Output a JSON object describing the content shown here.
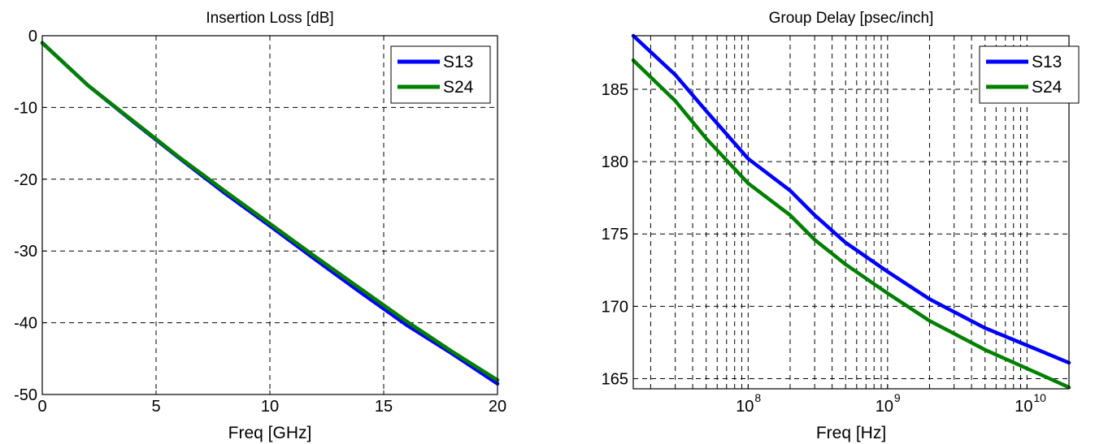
{
  "chart_data": [
    {
      "type": "line",
      "title": "Insertion Loss [dB]",
      "xlabel": "Freq [GHz]",
      "ylabel": "",
      "xscale": "linear",
      "xlim": [
        0,
        20
      ],
      "ylim": [
        -50,
        0
      ],
      "xticks": [
        0,
        5,
        10,
        15,
        20
      ],
      "xtick_labels": [
        "0",
        "5",
        "10",
        "15",
        "20"
      ],
      "yticks": [
        0,
        -10,
        -20,
        -30,
        -40,
        -50
      ],
      "ytick_labels": [
        "0",
        "-10",
        "-20",
        "-30",
        "-40",
        "-50"
      ],
      "grid": true,
      "legend_position": "top-right",
      "series": [
        {
          "name": "S13",
          "color": "#0000ff",
          "x": [
            0,
            2,
            4,
            6,
            8,
            10,
            12,
            14,
            16,
            18,
            20
          ],
          "y": [
            -1.0,
            -6.9,
            -12.0,
            -17.0,
            -21.9,
            -26.5,
            -31.2,
            -35.8,
            -40.3,
            -44.3,
            -48.5
          ]
        },
        {
          "name": "S24",
          "color": "#008000",
          "x": [
            0,
            2,
            4,
            6,
            8,
            10,
            12,
            14,
            16,
            18,
            20
          ],
          "y": [
            -1.0,
            -6.9,
            -11.9,
            -16.9,
            -21.6,
            -26.2,
            -30.8,
            -35.3,
            -39.8,
            -44.0,
            -48.0
          ]
        }
      ]
    },
    {
      "type": "line",
      "title": "Group Delay [psec/inch]",
      "xlabel": "Freq [Hz]",
      "ylabel": "",
      "xscale": "log",
      "xlim": [
        15000000,
        20000000000
      ],
      "ylim": [
        164.3,
        188.7
      ],
      "xticks": [
        100000000,
        1000000000,
        10000000000
      ],
      "xtick_labels": [
        {
          "base": "10",
          "exp": "8"
        },
        {
          "base": "10",
          "exp": "9"
        },
        {
          "base": "10",
          "exp": "10"
        }
      ],
      "yticks": [
        165,
        170,
        175,
        180,
        185
      ],
      "ytick_labels": [
        "165",
        "170",
        "175",
        "180",
        "185"
      ],
      "grid": true,
      "legend_position": "top-right",
      "series": [
        {
          "name": "S13",
          "color": "#0000ff",
          "x": [
            15000000,
            30000000,
            50000000,
            100000000,
            200000000,
            300000000,
            500000000,
            1000000000,
            2000000000,
            5000000000,
            10000000000,
            20000000000
          ],
          "y": [
            188.7,
            186.0,
            183.5,
            180.2,
            178.0,
            176.3,
            174.4,
            172.4,
            170.5,
            168.5,
            167.3,
            166.1
          ]
        },
        {
          "name": "S24",
          "color": "#008000",
          "x": [
            15000000,
            30000000,
            50000000,
            100000000,
            200000000,
            300000000,
            500000000,
            1000000000,
            2000000000,
            5000000000,
            10000000000,
            20000000000
          ],
          "y": [
            187.0,
            184.2,
            181.6,
            178.5,
            176.3,
            174.6,
            172.9,
            170.9,
            169.0,
            167.0,
            165.7,
            164.4
          ]
        }
      ]
    }
  ]
}
